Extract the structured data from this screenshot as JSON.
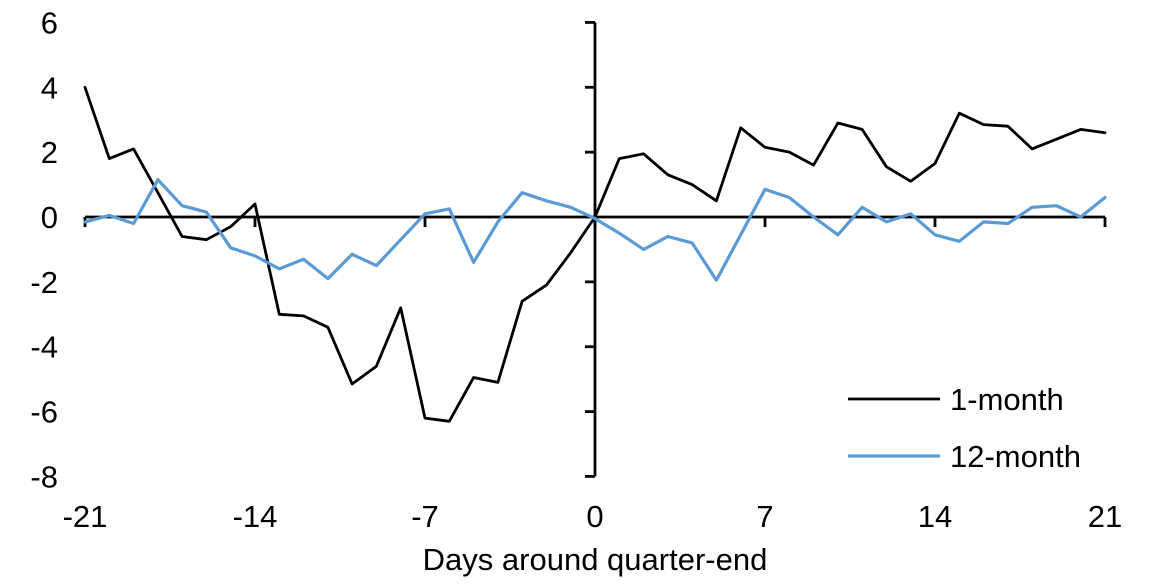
{
  "chart_data": {
    "type": "line",
    "title": "",
    "xlabel": "Days around quarter-end",
    "ylabel": "",
    "x": [
      -21,
      -20,
      -19,
      -18,
      -17,
      -16,
      -15,
      -14,
      -13,
      -12,
      -11,
      -10,
      -9,
      -8,
      -7,
      -6,
      -5,
      -4,
      -3,
      -2,
      -1,
      0,
      1,
      2,
      3,
      4,
      5,
      6,
      7,
      8,
      9,
      10,
      11,
      12,
      13,
      14,
      15,
      16,
      17,
      18,
      19,
      20,
      21
    ],
    "series": [
      {
        "name": "1-month",
        "color": "#000000",
        "values": [
          4.0,
          1.8,
          2.1,
          0.75,
          -0.6,
          -0.7,
          -0.3,
          0.4,
          -3.0,
          -3.05,
          -3.4,
          -5.15,
          -4.6,
          -2.8,
          -6.2,
          -6.3,
          -4.95,
          -5.1,
          -2.6,
          -2.1,
          -1.1,
          0.0,
          1.8,
          1.95,
          1.3,
          1.0,
          0.5,
          2.75,
          2.15,
          2.0,
          1.6,
          2.9,
          2.7,
          1.55,
          1.1,
          1.65,
          3.2,
          2.85,
          2.8,
          2.1,
          2.4,
          2.7,
          2.6
        ]
      },
      {
        "name": "12-month",
        "color": "#5B9BD5",
        "values": [
          -0.15,
          0.05,
          -0.2,
          1.15,
          0.35,
          0.15,
          -0.95,
          -1.2,
          -1.6,
          -1.3,
          -1.9,
          -1.15,
          -1.5,
          -0.7,
          0.1,
          0.25,
          -1.4,
          -0.15,
          0.75,
          0.5,
          0.3,
          -0.05,
          -0.5,
          -1.0,
          -0.6,
          -0.8,
          -1.95,
          -0.55,
          0.85,
          0.6,
          0.0,
          -0.55,
          0.3,
          -0.15,
          0.1,
          -0.55,
          -0.75,
          -0.15,
          -0.2,
          0.3,
          0.35,
          0.0,
          0.6
        ]
      }
    ],
    "xticks": [
      -21,
      -14,
      -7,
      0,
      7,
      14,
      21
    ],
    "yticks": [
      6,
      4,
      2,
      0,
      -2,
      -4,
      -6,
      -8
    ],
    "xlim": [
      -21,
      21
    ],
    "ylim": [
      -8,
      6
    ],
    "grid": false,
    "legend_position": "inside-lower-right",
    "axis_color": "#000000",
    "axes_cross_at": {
      "x": 0,
      "y": 0
    }
  }
}
